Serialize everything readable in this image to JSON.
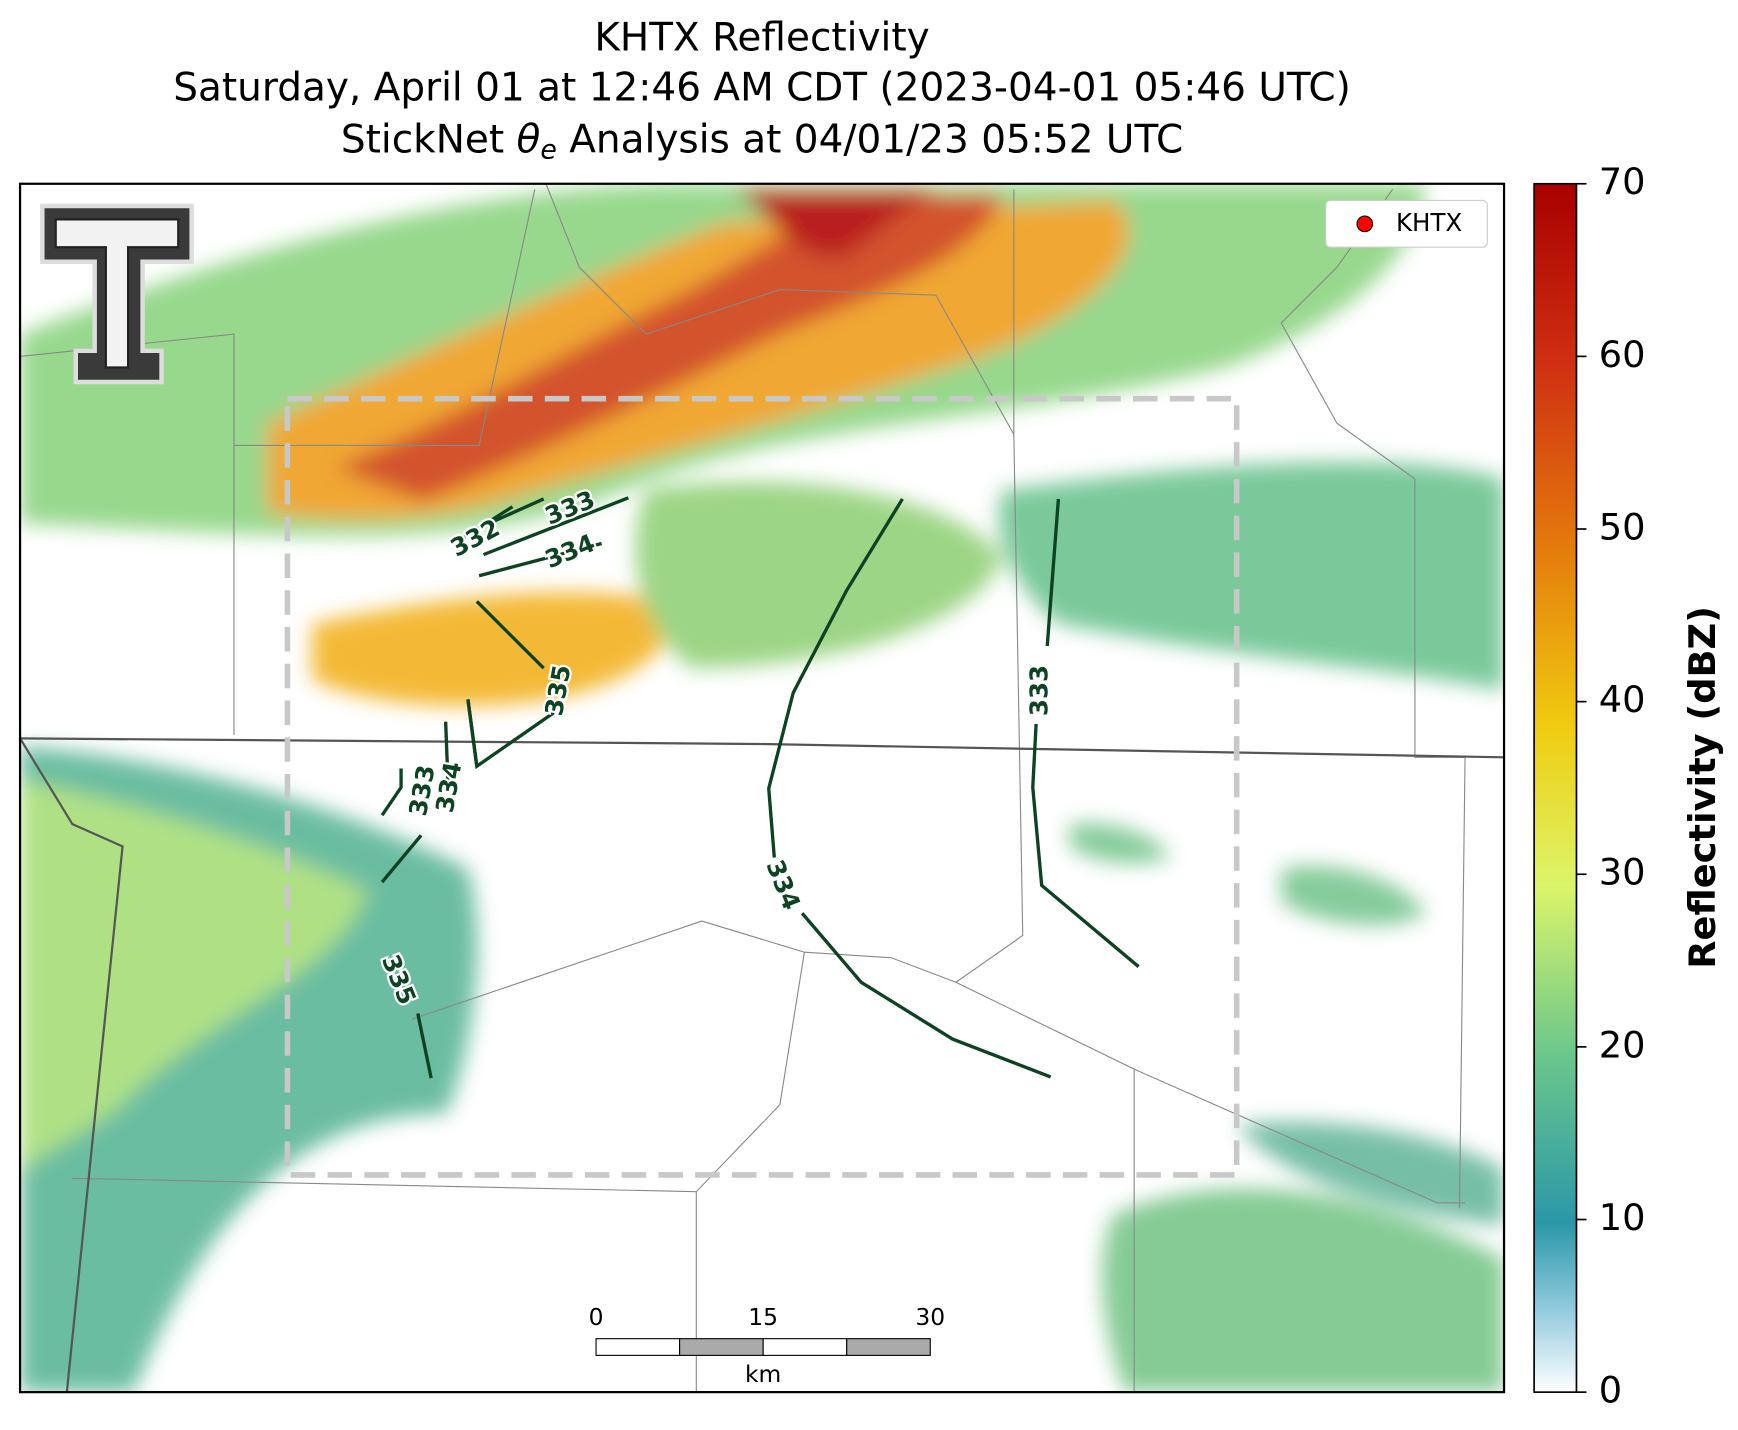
{
  "title_lines": [
    "KHTX Reflectivity",
    "Saturday, April 01 at 12:46 AM CDT (2023-04-01 05:46 UTC)"
  ],
  "subtitle": {
    "pre": "StickNet ",
    "symbol": "θ",
    "sub": "e",
    "post": " Analysis at 04/01/23 05:52 UTC"
  },
  "legend": {
    "label": "KHTX",
    "color": "#ff0000"
  },
  "contour_labels": [
    "332",
    "333",
    "334",
    "335",
    "333",
    "334",
    "335",
    "334",
    "333"
  ],
  "scale_bar": {
    "ticks": [
      "0",
      "15",
      "30"
    ],
    "unit": "km"
  },
  "colorbar": {
    "label": "Reflectivity (dBZ)",
    "lim": [
      0,
      70
    ],
    "ticks": [
      0,
      10,
      20,
      30,
      40,
      50,
      60,
      70
    ]
  }
}
